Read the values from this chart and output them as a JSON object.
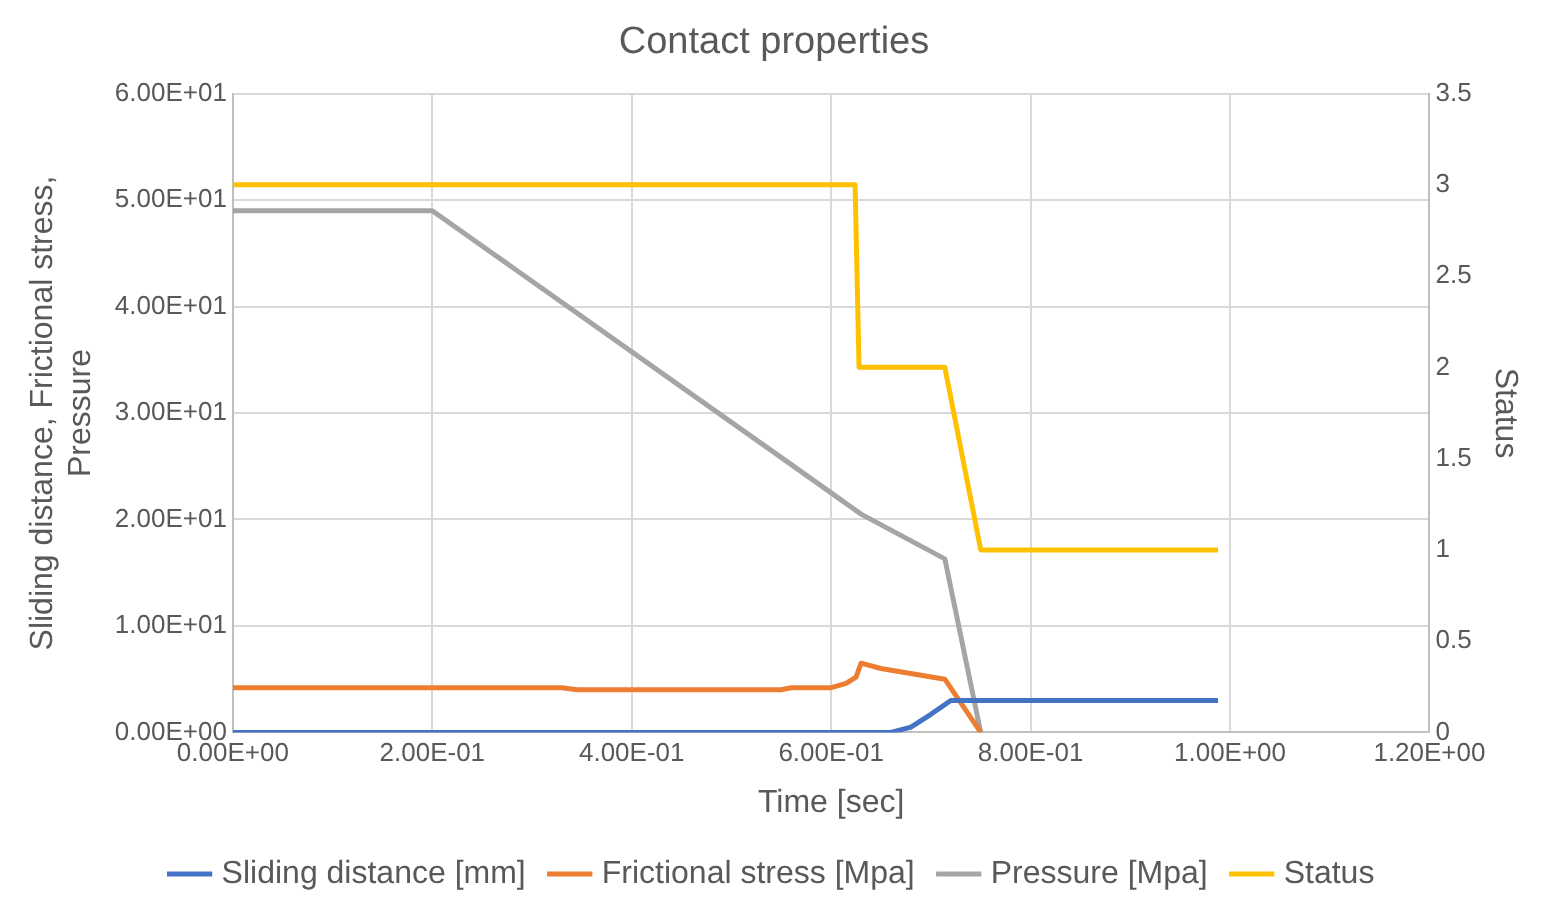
{
  "chart_data": {
    "type": "line",
    "title": "Contact properties",
    "xlabel": "Time [sec]",
    "ylabel": "Sliding distance, Frictional stress, Pressure",
    "y2label": "Status",
    "xlim": [
      0,
      1.2
    ],
    "xticks": [
      {
        "value": 0,
        "label": "0.00E+00"
      },
      {
        "value": 0.2,
        "label": "2.00E-01"
      },
      {
        "value": 0.4,
        "label": "4.00E-01"
      },
      {
        "value": 0.6,
        "label": "6.00E-01"
      },
      {
        "value": 0.8,
        "label": "8.00E-01"
      },
      {
        "value": 1.0,
        "label": "1.00E+00"
      },
      {
        "value": 1.2,
        "label": "1.20E+00"
      }
    ],
    "ylim": [
      0,
      60
    ],
    "yticks": [
      {
        "value": 0,
        "label": "0.00E+00"
      },
      {
        "value": 10,
        "label": "1.00E+01"
      },
      {
        "value": 20,
        "label": "2.00E+01"
      },
      {
        "value": 30,
        "label": "3.00E+01"
      },
      {
        "value": 40,
        "label": "4.00E+01"
      },
      {
        "value": 50,
        "label": "5.00E+01"
      },
      {
        "value": 60,
        "label": "6.00E+01"
      }
    ],
    "y2lim": [
      0,
      3.5
    ],
    "y2ticks": [
      0,
      0.5,
      1,
      1.5,
      2,
      2.5,
      3,
      3.5
    ],
    "grid": true,
    "legend": "bottom",
    "marker": "none",
    "line_style": "solid",
    "series": [
      {
        "name": "Sliding distance [mm]",
        "color": "#4472c4",
        "x": [
          0,
          0.6,
          0.66,
          0.68,
          0.7,
          0.72,
          0.75,
          0.988
        ],
        "values": [
          0,
          0,
          0,
          0.5,
          1.7,
          3,
          3,
          3
        ]
      },
      {
        "name": "Frictional stress [Mpa]",
        "color": "#ed7d31",
        "x": [
          0,
          0.33,
          0.345,
          0.55,
          0.56,
          0.6,
          0.615,
          0.625,
          0.63,
          0.65,
          0.714,
          0.75
        ],
        "values": [
          4.2,
          4.2,
          4.0,
          4.0,
          4.2,
          4.2,
          4.6,
          5.2,
          6.5,
          6.0,
          5.0,
          0
        ]
      },
      {
        "name": "Pressure [Mpa]",
        "color": "#a5a5a5",
        "x": [
          0,
          0.2,
          0.6,
          0.63,
          0.714,
          0.75
        ],
        "values": [
          49,
          49,
          22.5,
          20.5,
          16.3,
          0
        ]
      },
      {
        "name": "Status",
        "color": "#ffc000",
        "axis": "y2",
        "x": [
          0,
          0.624,
          0.628,
          0.714,
          0.75,
          0.988
        ],
        "values": [
          3,
          3,
          2,
          2,
          1,
          1
        ]
      }
    ]
  }
}
